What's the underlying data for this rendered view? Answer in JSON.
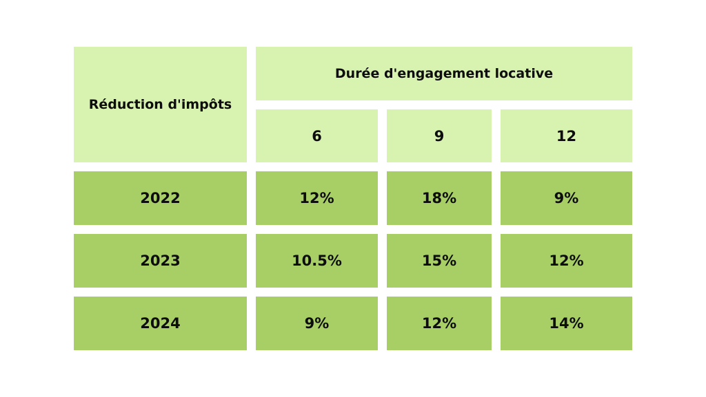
{
  "table": {
    "corner_label": "Réduction d'impôts",
    "group_header": "Durée d'engagement locative",
    "durations": [
      "6",
      "9",
      "12"
    ],
    "rows": [
      {
        "year": "2022",
        "values": [
          "12%",
          "18%",
          "9%"
        ]
      },
      {
        "year": "2023",
        "values": [
          "10.5%",
          "15%",
          "12%"
        ]
      },
      {
        "year": "2024",
        "values": [
          "9%",
          "12%",
          "14%"
        ]
      }
    ]
  },
  "colors": {
    "header_fill": "#d8f2b0",
    "body_fill": "#a8cf66",
    "text": "#0d0d0d"
  }
}
